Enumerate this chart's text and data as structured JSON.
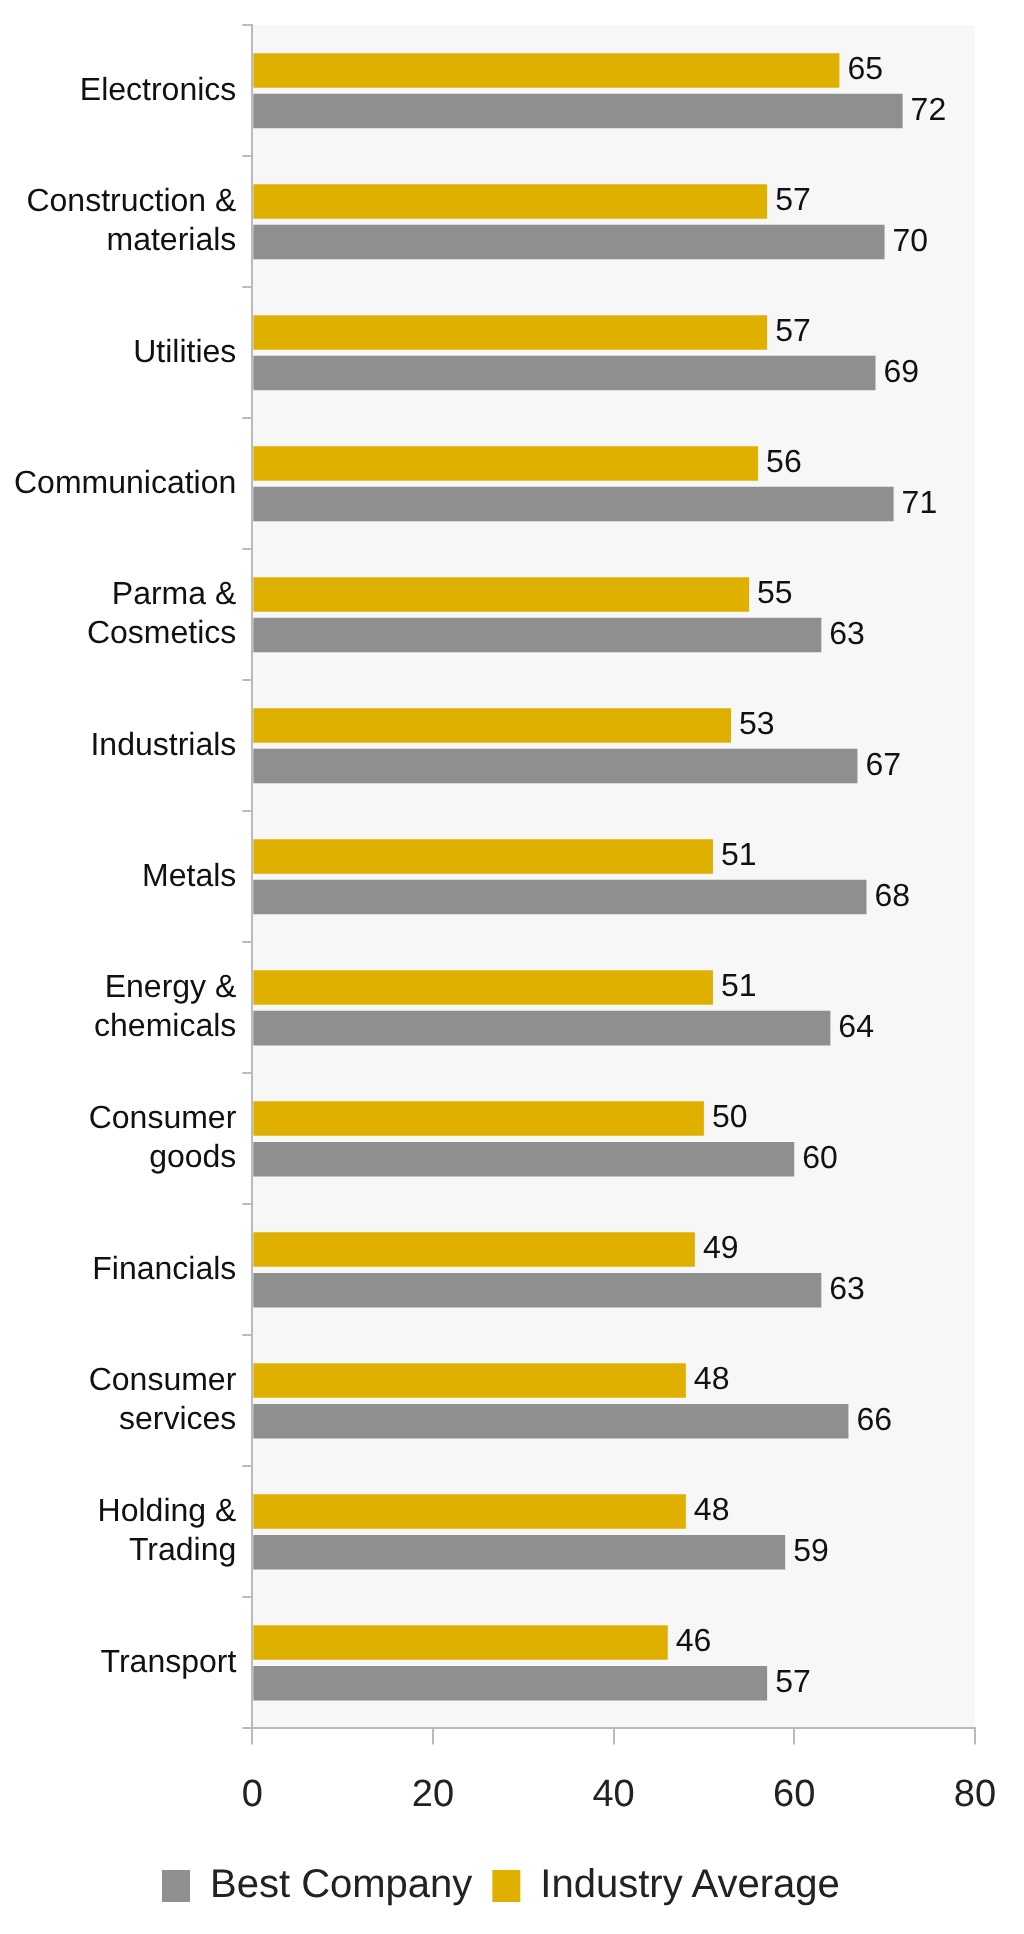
{
  "chart_data": {
    "type": "bar",
    "orientation": "horizontal",
    "categories": [
      "Electronics",
      "Construction & materials",
      "Utilities",
      "Communication",
      "Parma & Cosmetics",
      "Industrials",
      "Metals",
      "Energy & chemicals",
      "Consumer goods",
      "Financials",
      "Consumer services",
      "Holding & Trading",
      "Transport"
    ],
    "series": [
      {
        "name": "Industry Average",
        "color": "#e0b000",
        "values": [
          65,
          57,
          57,
          56,
          55,
          53,
          51,
          51,
          50,
          49,
          48,
          48,
          46
        ]
      },
      {
        "name": "Best Company",
        "color": "#8f8f8f",
        "values": [
          72,
          70,
          69,
          71,
          63,
          67,
          68,
          64,
          60,
          63,
          66,
          59,
          57
        ]
      }
    ],
    "xlim": [
      0,
      80
    ],
    "xticks": [
      0,
      20,
      40,
      60,
      80
    ],
    "grid": false,
    "legend": "bottom",
    "data_labels": true
  }
}
